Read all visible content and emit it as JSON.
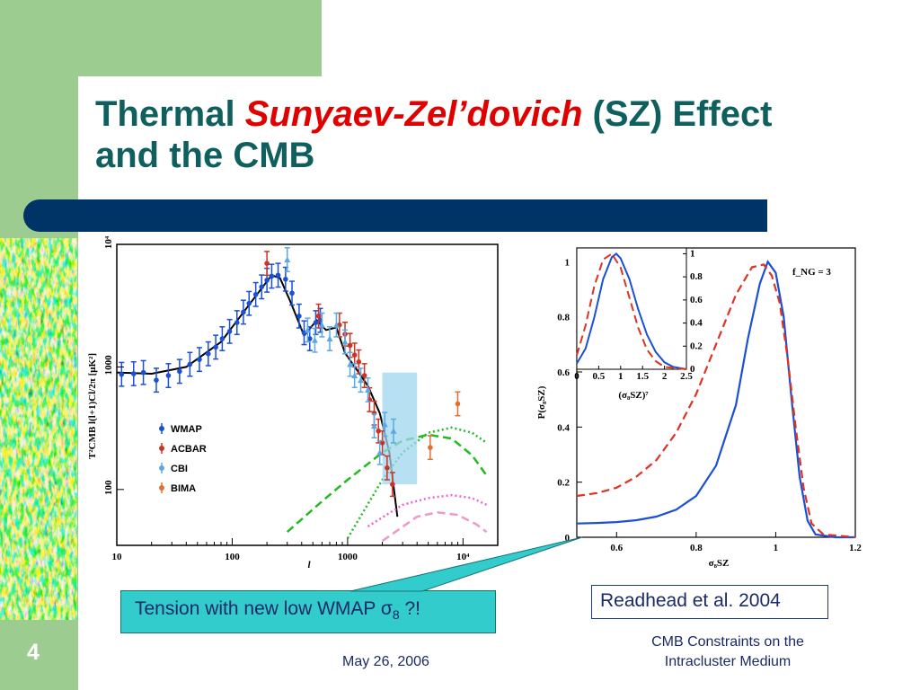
{
  "slide": {
    "title_part1": "Thermal ",
    "title_emphasis": "Sunyaev-Zel’dovich",
    "title_part2": " (SZ) Effect",
    "title_line2": "and the CMB",
    "number": "4",
    "footer_date": "May 26, 2006",
    "footer_title_line1": "CMB Constraints on the",
    "footer_title_line2": "Intracluster Medium",
    "callout_prefix": "Tension with new low WMAP ",
    "callout_sigma": "σ",
    "callout_sub": "8",
    "callout_suffix": " ?!",
    "citation": "Readhead et al. 2004",
    "colors": {
      "band": "#9ccc8f",
      "title": "#0f5f5f",
      "emphasis": "#e00000",
      "bar": "#003366",
      "callout": "#33cccc"
    }
  },
  "chart_data": [
    {
      "type": "scatter",
      "xlabel": "l",
      "ylabel": "T²CMB l(l+1)Cl/2π [μK²]",
      "xscale": "log",
      "yscale": "log",
      "xlim": [
        10,
        20000
      ],
      "ylim": [
        35,
        10000
      ],
      "x_ticks": [
        "10",
        "100",
        "1000",
        "10⁴"
      ],
      "y_ticks": [
        "100",
        "1000",
        "10⁴"
      ],
      "legend_position": "lower-left",
      "series": [
        {
          "name": "WMAP",
          "color": "#1a4fd6",
          "x": [
            11,
            14,
            17,
            22,
            28,
            35,
            43,
            52,
            62,
            72,
            82,
            95,
            110,
            125,
            140,
            160,
            180,
            200,
            220,
            250,
            290,
            330,
            380,
            420,
            470,
            530,
            580
          ],
          "y": [
            870,
            880,
            900,
            780,
            850,
            920,
            1050,
            1150,
            1280,
            1450,
            1700,
            1950,
            2300,
            2800,
            3300,
            3900,
            4500,
            5100,
            5500,
            5600,
            5200,
            4000,
            2600,
            1900,
            1700,
            2300,
            2400
          ]
        },
        {
          "name": "ACBAR",
          "color": "#cc3322",
          "x": [
            200,
            560,
            850,
            950,
            1050,
            1150,
            1250,
            1400,
            1550,
            1700,
            1850,
            2000,
            2200,
            2450
          ],
          "y": [
            7000,
            2600,
            2200,
            1850,
            1500,
            1250,
            1100,
            850,
            540,
            420,
            300,
            240,
            150,
            110
          ]
        },
        {
          "name": "CBI",
          "color": "#5aa9e6",
          "x": [
            300,
            450,
            520,
            600,
            700,
            800,
            950,
            1050,
            1150,
            1300,
            1500,
            1700,
            1900,
            2100,
            2500
          ],
          "y": [
            7500,
            2000,
            1650,
            2200,
            1700,
            2200,
            1600,
            1050,
            850,
            780,
            650,
            330,
            200,
            340,
            300
          ]
        },
        {
          "name": "BIMA",
          "color": "#e07030",
          "x": [
            5200,
            9000
          ],
          "y": [
            220,
            500
          ]
        }
      ],
      "model_curves": [
        {
          "color": "#000000",
          "style": "solid",
          "x": [
            10,
            20,
            40,
            80,
            150,
            220,
            260,
            320,
            420,
            540,
            650,
            800,
            950,
            1200,
            1500,
            1900,
            2300,
            2700
          ],
          "y": [
            900,
            880,
            1000,
            1600,
            3500,
            5600,
            5300,
            3400,
            1800,
            2400,
            2000,
            2100,
            1300,
            950,
            700,
            420,
            200,
            60
          ]
        },
        {
          "color": "#22bb22",
          "style": "dashed",
          "x": [
            300,
            600,
            1000,
            2000,
            3000,
            5000,
            8000,
            12000,
            16000
          ],
          "y": [
            45,
            80,
            120,
            200,
            250,
            280,
            260,
            190,
            130
          ]
        },
        {
          "color": "#22bb22",
          "style": "dotted",
          "x": [
            1000,
            2000,
            3000,
            5000,
            8000,
            12000,
            16000
          ],
          "y": [
            40,
            120,
            200,
            290,
            320,
            290,
            240
          ]
        },
        {
          "color": "#ee66cc",
          "style": "dotted",
          "x": [
            1500,
            3000,
            5000,
            8000,
            12000,
            16000
          ],
          "y": [
            50,
            75,
            85,
            90,
            85,
            75
          ]
        },
        {
          "color": "#ee99cc",
          "style": "dashed",
          "x": [
            2000,
            4000,
            6000,
            9000,
            13000,
            16000
          ],
          "y": [
            38,
            60,
            65,
            62,
            52,
            45
          ]
        }
      ]
    },
    {
      "type": "line",
      "xlabel": "σ₈SZ",
      "ylabel": "P(σ₈SZ)",
      "xlim": [
        0.5,
        1.2
      ],
      "ylim": [
        0,
        1.05
      ],
      "x_ticks": [
        "0.6",
        "0.8",
        "1",
        "1.2"
      ],
      "y_ticks": [
        "0",
        "0.2",
        "0.4",
        "0.6",
        "0.8",
        "1"
      ],
      "annotation": "f_NG = 3",
      "series": [
        {
          "color": "#1a4fd6",
          "style": "solid",
          "x": [
            0.5,
            0.55,
            0.6,
            0.65,
            0.7,
            0.75,
            0.8,
            0.85,
            0.9,
            0.93,
            0.96,
            0.98,
            1.0,
            1.02,
            1.04,
            1.06,
            1.08,
            1.1,
            1.15,
            1.2
          ],
          "y": [
            0.05,
            0.052,
            0.055,
            0.062,
            0.075,
            0.1,
            0.15,
            0.26,
            0.48,
            0.72,
            0.92,
            1.0,
            0.96,
            0.8,
            0.5,
            0.22,
            0.06,
            0.01,
            0.0,
            0.0
          ]
        },
        {
          "color": "#dd3322",
          "style": "dashed",
          "x": [
            0.5,
            0.55,
            0.6,
            0.65,
            0.7,
            0.75,
            0.8,
            0.85,
            0.9,
            0.94,
            0.97,
            0.99,
            1.01,
            1.03,
            1.05,
            1.07,
            1.09,
            1.12,
            1.2
          ],
          "y": [
            0.15,
            0.16,
            0.18,
            0.22,
            0.28,
            0.38,
            0.52,
            0.7,
            0.88,
            0.98,
            0.99,
            0.95,
            0.85,
            0.65,
            0.4,
            0.18,
            0.05,
            0.01,
            0.0
          ]
        }
      ],
      "inset": {
        "xlabel": "(σ₈SZ)⁷",
        "xlim": [
          0,
          2.5
        ],
        "ylim": [
          0,
          1.05
        ],
        "x_ticks": [
          "0",
          "0.5",
          "1",
          "1.5",
          "2",
          "2.5"
        ],
        "y_ticks": [
          "0",
          "0.2",
          "0.4",
          "0.6",
          "0.8",
          "1"
        ],
        "series": [
          {
            "color": "#1a4fd6",
            "style": "solid",
            "x": [
              0,
              0.2,
              0.4,
              0.6,
              0.8,
              0.9,
              1.0,
              1.2,
              1.4,
              1.6,
              1.8,
              2.0,
              2.2,
              2.5
            ],
            "y": [
              0.05,
              0.18,
              0.45,
              0.78,
              0.97,
              1.0,
              0.96,
              0.78,
              0.52,
              0.3,
              0.15,
              0.06,
              0.02,
              0.0
            ]
          },
          {
            "color": "#dd3322",
            "style": "dashed",
            "x": [
              0,
              0.2,
              0.4,
              0.6,
              0.8,
              1.0,
              1.2,
              1.4,
              1.6,
              1.8,
              2.0,
              2.5
            ],
            "y": [
              0.12,
              0.38,
              0.72,
              0.95,
              1.0,
              0.88,
              0.62,
              0.36,
              0.17,
              0.07,
              0.02,
              0.0
            ]
          }
        ]
      }
    }
  ]
}
